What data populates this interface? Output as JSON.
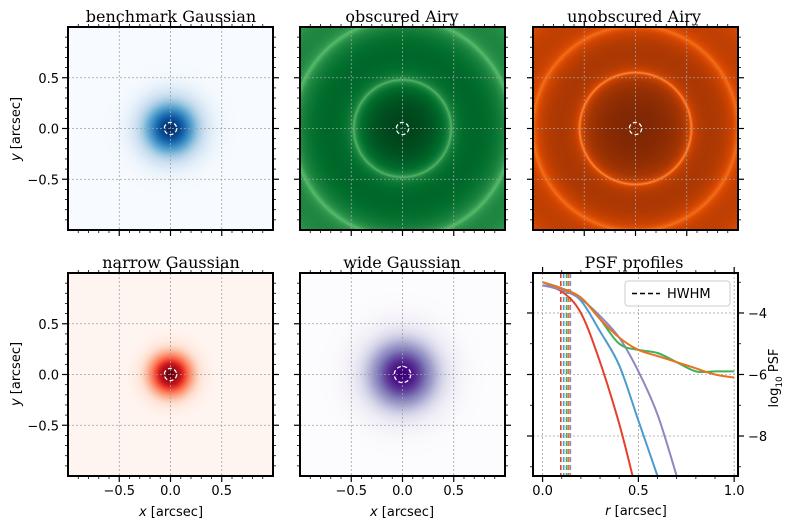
{
  "chart_data": [
    {
      "type": "heatmap",
      "title": "benchmark Gaussian",
      "colormap": "Blues",
      "profile": "gauss",
      "width": 0.15,
      "x_range": [
        -1,
        1
      ],
      "y_range": [
        -1,
        1
      ],
      "hwhm": 0.06,
      "colors": [
        "#f7fbff",
        "#deebf7",
        "#c6dbef",
        "#9ecae1",
        "#6baed6",
        "#4292c6",
        "#2171b5",
        "#08519c",
        "#08306b"
      ]
    },
    {
      "type": "heatmap",
      "title": "obscured Airy",
      "colormap": "Greens",
      "profile": "airy_obscured",
      "x_range": [
        -1,
        1
      ],
      "y_range": [
        -1,
        1
      ],
      "hwhm": 0.06,
      "colors": [
        "#f7fcf5",
        "#e5f5e0",
        "#c7e9c0",
        "#a1d99b",
        "#74c476",
        "#41ab5d",
        "#238b45",
        "#006d2c",
        "#00441b"
      ]
    },
    {
      "type": "heatmap",
      "title": "unobscured Airy",
      "colormap": "Oranges",
      "profile": "airy",
      "x_range": [
        -1,
        1
      ],
      "y_range": [
        -1,
        1
      ],
      "hwhm": 0.06,
      "colors": [
        "#fff5eb",
        "#fee6ce",
        "#fdd0a2",
        "#fdae6b",
        "#fd8d3c",
        "#f16913",
        "#d94801",
        "#a63603",
        "#7f2704"
      ]
    },
    {
      "type": "heatmap",
      "title": "narrow Gaussian",
      "colormap": "Reds",
      "profile": "gauss",
      "width": 0.11,
      "x_range": [
        -1,
        1
      ],
      "y_range": [
        -1,
        1
      ],
      "hwhm": 0.06,
      "colors": [
        "#fff5f0",
        "#fee0d2",
        "#fcbba1",
        "#fc9272",
        "#fb6a4a",
        "#ef3b2c",
        "#cb181d",
        "#a50f15",
        "#67000d"
      ]
    },
    {
      "type": "heatmap",
      "title": "wide Gaussian",
      "colormap": "Purples",
      "profile": "gauss",
      "width": 0.19,
      "x_range": [
        -1,
        1
      ],
      "y_range": [
        -1,
        1
      ],
      "hwhm": 0.08,
      "colors": [
        "#fcfbfd",
        "#efedf5",
        "#dadaeb",
        "#bcbddc",
        "#9e9ac8",
        "#807dba",
        "#6a51a3",
        "#54278f",
        "#3f007d"
      ]
    },
    {
      "type": "line",
      "title": "PSF profiles",
      "xlabel": "r [arcsec]",
      "ylabel": "log10 PSF",
      "xlim": [
        -0.05,
        1.02
      ],
      "ylim": [
        -9.3,
        -2.7
      ],
      "legend": {
        "label": "HWHM",
        "location": "top-right"
      },
      "x_ticks": [
        "0.0",
        "0.5",
        "1.0"
      ],
      "y_ticks": [
        "−4",
        "−6",
        "−8"
      ],
      "hwhm_lines": [
        {
          "x": 0.095,
          "color": "#e5402d"
        },
        {
          "x": 0.11,
          "color": "#4b9cce"
        },
        {
          "x": 0.125,
          "color": "#41b05b"
        },
        {
          "x": 0.135,
          "color": "#e8731e"
        },
        {
          "x": 0.145,
          "color": "#8f87c2"
        }
      ],
      "series": [
        {
          "name": "narrow Gaussian",
          "color": "#e5402d",
          "x": [
            0,
            0.1,
            0.2,
            0.3,
            0.4,
            0.47
          ],
          "y": [
            -3.1,
            -3.3,
            -4.0,
            -5.6,
            -7.6,
            -9.3
          ]
        },
        {
          "name": "benchmark Gaussian",
          "color": "#4b9cce",
          "x": [
            0,
            0.1,
            0.2,
            0.3,
            0.4,
            0.5,
            0.6
          ],
          "y": [
            -3.1,
            -3.2,
            -3.6,
            -4.6,
            -5.7,
            -7.5,
            -9.3
          ]
        },
        {
          "name": "wide Gaussian",
          "color": "#8f87c2",
          "x": [
            0,
            0.1,
            0.2,
            0.3,
            0.4,
            0.5,
            0.6,
            0.7
          ],
          "y": [
            -3.1,
            -3.25,
            -3.55,
            -4.1,
            -4.8,
            -5.9,
            -7.3,
            -9.3
          ]
        },
        {
          "name": "obscured Airy",
          "color": "#41b05b",
          "x": [
            0,
            0.1,
            0.2,
            0.3,
            0.4,
            0.5,
            0.6,
            0.7,
            0.8,
            0.9,
            1.0
          ],
          "y": [
            -3.0,
            -3.2,
            -3.5,
            -4.2,
            -5.0,
            -5.2,
            -5.3,
            -5.6,
            -5.9,
            -5.9,
            -5.9
          ]
        },
        {
          "name": "unobscured Airy",
          "color": "#e8731e",
          "x": [
            0,
            0.1,
            0.2,
            0.3,
            0.4,
            0.5,
            0.6,
            0.7,
            0.8,
            0.9,
            1.0
          ],
          "y": [
            -3.0,
            -3.2,
            -3.5,
            -4.2,
            -4.8,
            -5.2,
            -5.4,
            -5.6,
            -5.8,
            -6.0,
            -6.1
          ]
        }
      ]
    }
  ],
  "axes": {
    "x_ticks": [
      "−0.5",
      "0.0",
      "0.5"
    ],
    "y_ticks": [
      "0.5",
      "0.0",
      "−0.5"
    ],
    "xlabel": "x [arcsec]",
    "ylabel": "y [arcsec]",
    "grid": true
  }
}
